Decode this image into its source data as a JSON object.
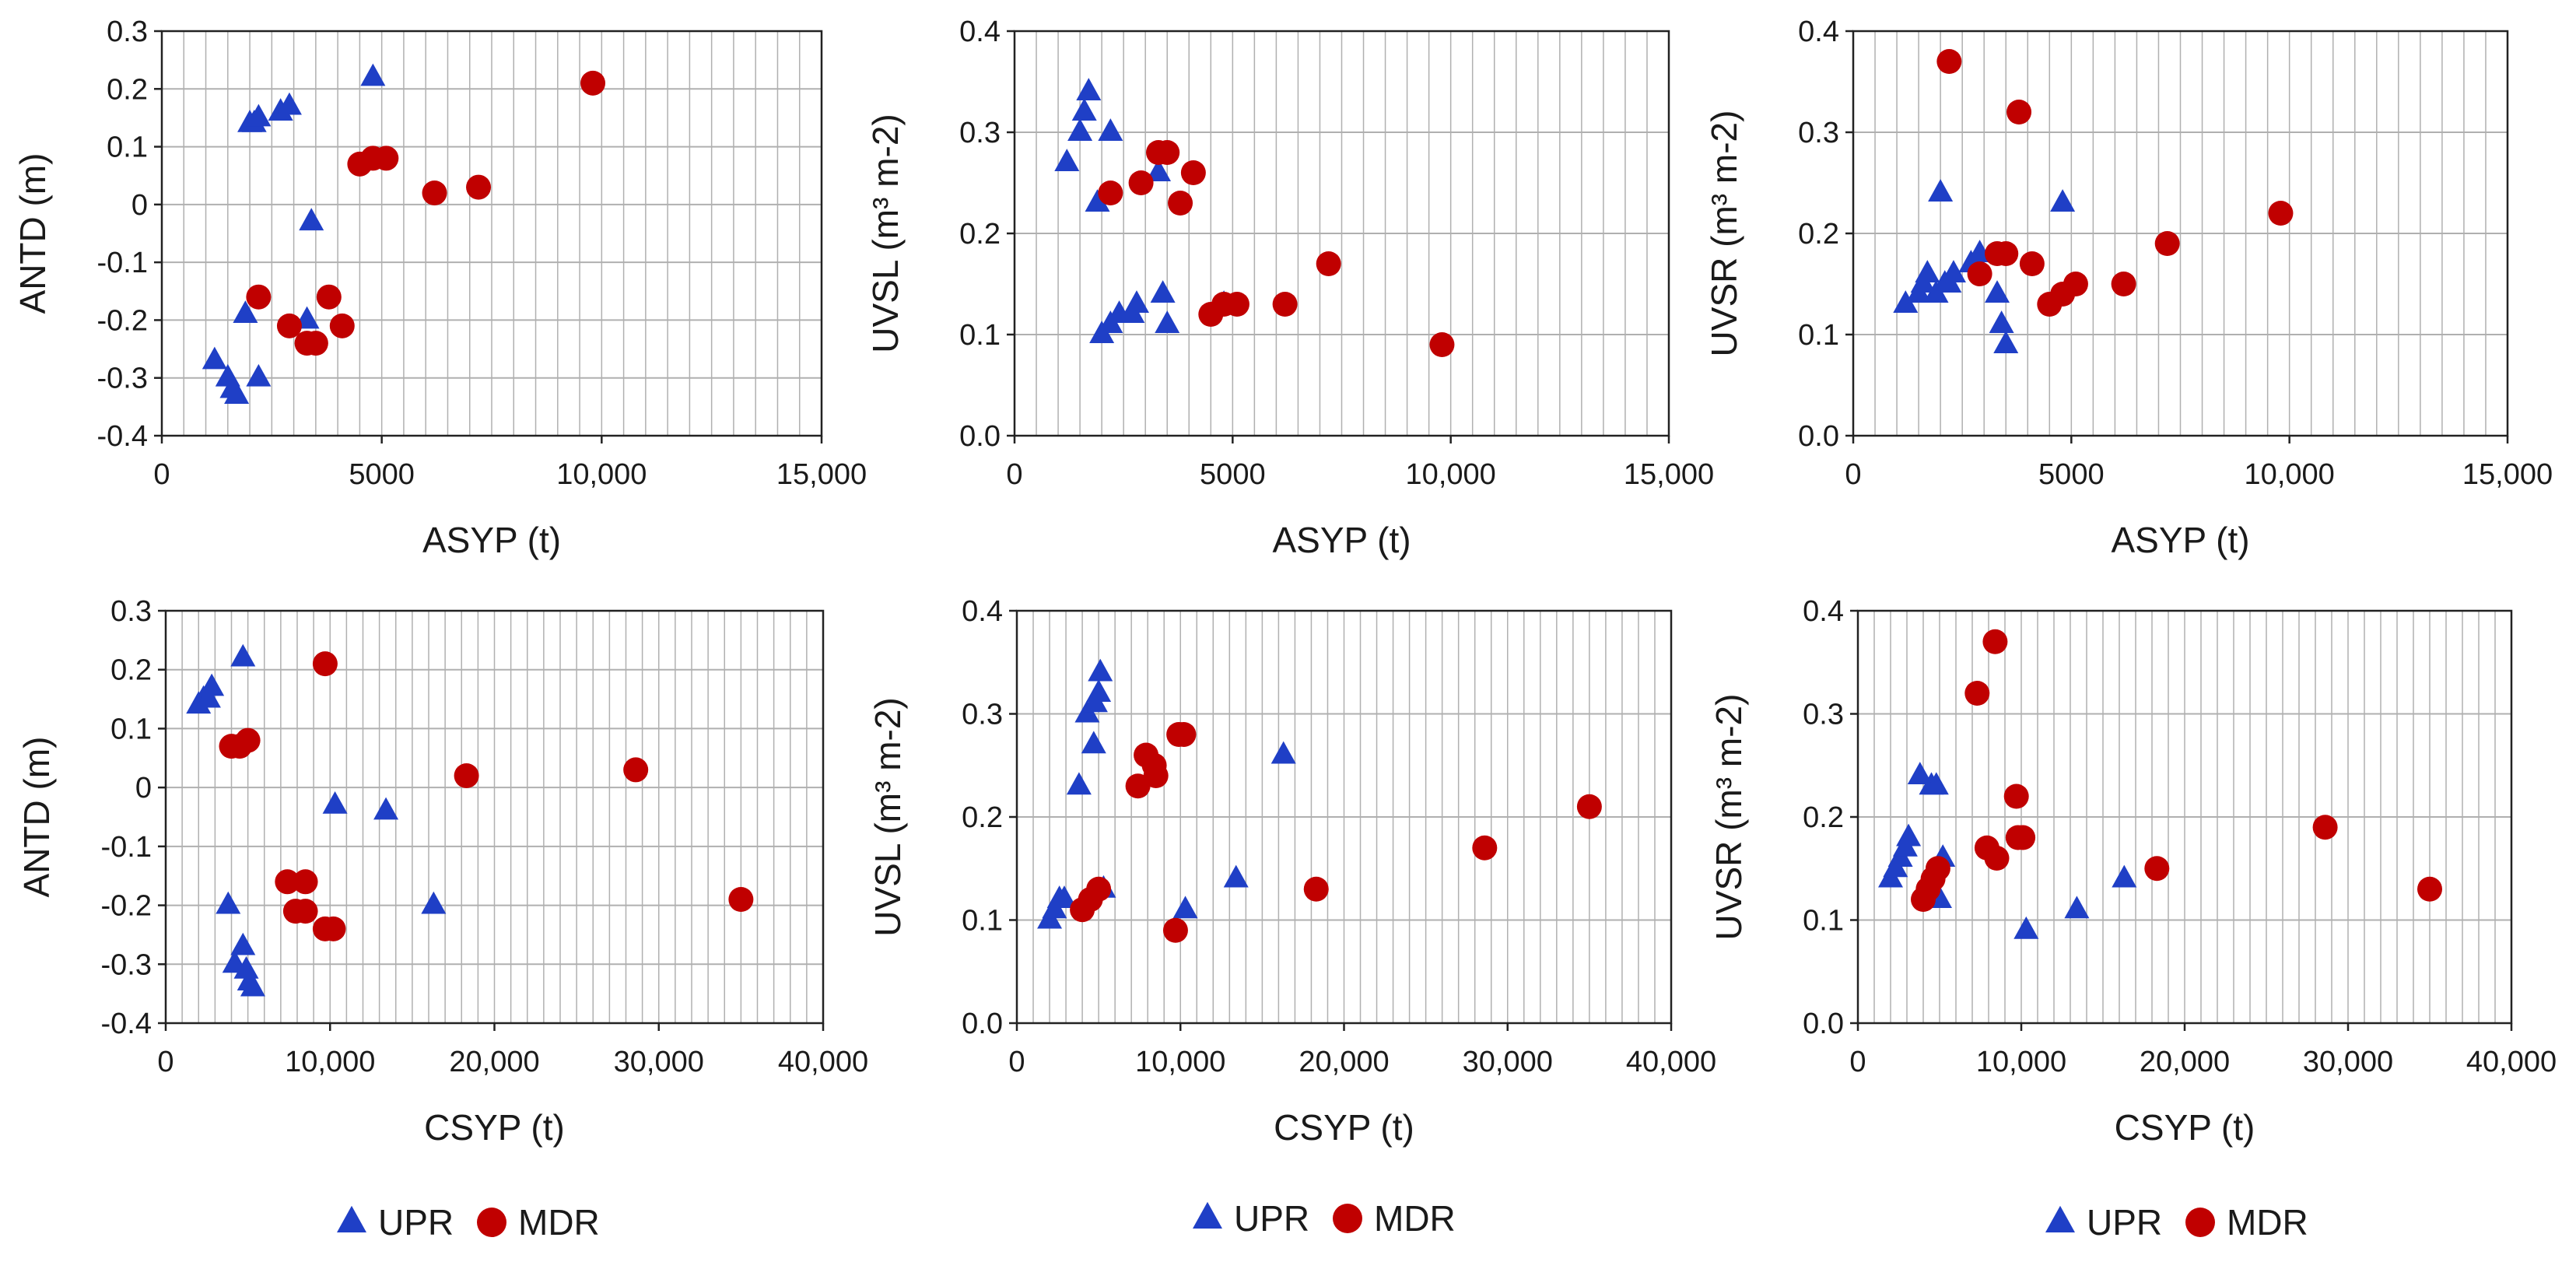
{
  "colors": {
    "UPR": "#1f3fc6",
    "MDR": "#c00000",
    "grid": "#b0b0b0",
    "axis": "#222222"
  },
  "legend": [
    {
      "name": "UPR",
      "marker": "triangle"
    },
    {
      "name": "MDR",
      "marker": "circle"
    }
  ],
  "chart_data": [
    {
      "type": "scatter",
      "xlabel": "ASYP (t)",
      "ylabel": "ANTD (m)",
      "xlim": [
        0,
        15000
      ],
      "xticks": [
        0,
        5000,
        10000,
        15000
      ],
      "xtick_labels": [
        "0",
        "5000",
        "10,000",
        "15,000"
      ],
      "ylim": [
        -0.4,
        0.3
      ],
      "yticks": [
        -0.4,
        -0.3,
        -0.2,
        -0.1,
        0,
        0.1,
        0.2,
        0.3
      ],
      "ytick_labels": [
        "-0.4",
        "-0.3",
        "-0.2",
        "-0.1",
        "0",
        "0.1",
        "0.2",
        "0.3"
      ],
      "grid": true,
      "series": [
        {
          "name": "UPR",
          "points": [
            [
              1200,
              -0.27
            ],
            [
              1500,
              -0.3
            ],
            [
              1600,
              -0.32
            ],
            [
              1700,
              -0.33
            ],
            [
              1900,
              -0.19
            ],
            [
              2000,
              0.14
            ],
            [
              2100,
              0.14
            ],
            [
              2200,
              0.15
            ],
            [
              2200,
              -0.3
            ],
            [
              2700,
              0.16
            ],
            [
              2900,
              0.17
            ],
            [
              3300,
              -0.2
            ],
            [
              3400,
              -0.03
            ],
            [
              4800,
              0.22
            ]
          ]
        },
        {
          "name": "MDR",
          "points": [
            [
              2200,
              -0.16
            ],
            [
              2900,
              -0.21
            ],
            [
              3300,
              -0.24
            ],
            [
              3500,
              -0.24
            ],
            [
              3800,
              -0.16
            ],
            [
              4100,
              -0.21
            ],
            [
              4500,
              0.07
            ],
            [
              4800,
              0.08
            ],
            [
              5100,
              0.08
            ],
            [
              6200,
              0.02
            ],
            [
              7200,
              0.03
            ],
            [
              9800,
              0.21
            ]
          ]
        }
      ]
    },
    {
      "type": "scatter",
      "xlabel": "ASYP (t)",
      "ylabel": "UVSL (m³ m-2)",
      "xlim": [
        0,
        15000
      ],
      "xticks": [
        0,
        5000,
        10000,
        15000
      ],
      "xtick_labels": [
        "0",
        "5000",
        "10,000",
        "15,000"
      ],
      "ylim": [
        0,
        0.4
      ],
      "yticks": [
        0,
        0.1,
        0.2,
        0.3,
        0.4
      ],
      "ytick_labels": [
        "0.0",
        "0.1",
        "0.2",
        "0.3",
        "0.4"
      ],
      "grid": true,
      "series": [
        {
          "name": "UPR",
          "points": [
            [
              1200,
              0.27
            ],
            [
              1500,
              0.3
            ],
            [
              1600,
              0.32
            ],
            [
              1700,
              0.34
            ],
            [
              1900,
              0.23
            ],
            [
              2000,
              0.1
            ],
            [
              2200,
              0.3
            ],
            [
              2200,
              0.11
            ],
            [
              2400,
              0.12
            ],
            [
              2700,
              0.12
            ],
            [
              2800,
              0.13
            ],
            [
              3300,
              0.26
            ],
            [
              3400,
              0.14
            ],
            [
              3500,
              0.11
            ],
            [
              4800,
              0.13
            ]
          ]
        },
        {
          "name": "MDR",
          "points": [
            [
              2200,
              0.24
            ],
            [
              2900,
              0.25
            ],
            [
              3300,
              0.28
            ],
            [
              3500,
              0.28
            ],
            [
              3800,
              0.23
            ],
            [
              4100,
              0.26
            ],
            [
              4500,
              0.12
            ],
            [
              4800,
              0.13
            ],
            [
              5100,
              0.13
            ],
            [
              6200,
              0.13
            ],
            [
              7200,
              0.17
            ],
            [
              9800,
              0.09
            ]
          ]
        }
      ]
    },
    {
      "type": "scatter",
      "xlabel": "ASYP (t)",
      "ylabel": "UVSR (m³ m-2)",
      "xlim": [
        0,
        15000
      ],
      "xticks": [
        0,
        5000,
        10000,
        15000
      ],
      "xtick_labels": [
        "0",
        "5000",
        "10,000",
        "15,000"
      ],
      "ylim": [
        0,
        0.4
      ],
      "yticks": [
        0,
        0.1,
        0.2,
        0.3,
        0.4
      ],
      "ytick_labels": [
        "0.0",
        "0.1",
        "0.2",
        "0.3",
        "0.4"
      ],
      "grid": true,
      "series": [
        {
          "name": "UPR",
          "points": [
            [
              1200,
              0.13
            ],
            [
              1500,
              0.14
            ],
            [
              1600,
              0.15
            ],
            [
              1700,
              0.16
            ],
            [
              1900,
              0.14
            ],
            [
              2000,
              0.24
            ],
            [
              2100,
              0.15
            ],
            [
              2200,
              0.15
            ],
            [
              2300,
              0.16
            ],
            [
              2700,
              0.17
            ],
            [
              2900,
              0.18
            ],
            [
              3300,
              0.14
            ],
            [
              3400,
              0.11
            ],
            [
              3500,
              0.09
            ],
            [
              4800,
              0.23
            ]
          ]
        },
        {
          "name": "MDR",
          "points": [
            [
              2200,
              0.37
            ],
            [
              2900,
              0.16
            ],
            [
              3300,
              0.18
            ],
            [
              3500,
              0.18
            ],
            [
              3800,
              0.32
            ],
            [
              4100,
              0.17
            ],
            [
              4500,
              0.13
            ],
            [
              4800,
              0.14
            ],
            [
              5100,
              0.15
            ],
            [
              6200,
              0.15
            ],
            [
              7200,
              0.19
            ],
            [
              9800,
              0.22
            ]
          ]
        }
      ]
    },
    {
      "type": "scatter",
      "xlabel": "CSYP (t)",
      "ylabel": "ANTD (m)",
      "xlim": [
        0,
        40000
      ],
      "xticks": [
        0,
        10000,
        20000,
        30000,
        40000
      ],
      "xtick_labels": [
        "0",
        "10,000",
        "20,000",
        "30,000",
        "40,000"
      ],
      "ylim": [
        -0.4,
        0.3
      ],
      "yticks": [
        -0.4,
        -0.3,
        -0.2,
        -0.1,
        0,
        0.1,
        0.2,
        0.3
      ],
      "ytick_labels": [
        "-0.4",
        "-0.3",
        "-0.2",
        "-0.1",
        "0",
        "0.1",
        "0.2",
        "0.3"
      ],
      "grid": true,
      "series": [
        {
          "name": "UPR",
          "points": [
            [
              2000,
              0.14
            ],
            [
              2300,
              0.15
            ],
            [
              2600,
              0.15
            ],
            [
              2800,
              0.17
            ],
            [
              3800,
              -0.2
            ],
            [
              4200,
              -0.3
            ],
            [
              4700,
              -0.27
            ],
            [
              4700,
              0.22
            ],
            [
              4900,
              -0.31
            ],
            [
              5100,
              -0.33
            ],
            [
              5300,
              -0.34
            ],
            [
              10300,
              -0.03
            ],
            [
              13400,
              -0.04
            ],
            [
              16300,
              -0.2
            ]
          ]
        },
        {
          "name": "MDR",
          "points": [
            [
              4000,
              0.07
            ],
            [
              4500,
              0.07
            ],
            [
              5000,
              0.08
            ],
            [
              7400,
              -0.16
            ],
            [
              7900,
              -0.21
            ],
            [
              8500,
              -0.16
            ],
            [
              8500,
              -0.21
            ],
            [
              9700,
              0.21
            ],
            [
              9700,
              -0.24
            ],
            [
              10200,
              -0.24
            ],
            [
              18300,
              0.02
            ],
            [
              28600,
              0.03
            ],
            [
              35000,
              -0.19
            ]
          ]
        }
      ]
    },
    {
      "type": "scatter",
      "xlabel": "CSYP (t)",
      "ylabel": "UVSL (m³ m-2)",
      "xlim": [
        0,
        40000
      ],
      "xticks": [
        0,
        10000,
        20000,
        30000,
        40000
      ],
      "xtick_labels": [
        "0",
        "10,000",
        "20,000",
        "30,000",
        "40,000"
      ],
      "ylim": [
        0,
        0.4
      ],
      "yticks": [
        0,
        0.1,
        0.2,
        0.3,
        0.4
      ],
      "ytick_labels": [
        "0.0",
        "0.1",
        "0.2",
        "0.3",
        "0.4"
      ],
      "grid": true,
      "series": [
        {
          "name": "UPR",
          "points": [
            [
              2000,
              0.1
            ],
            [
              2300,
              0.11
            ],
            [
              2600,
              0.12
            ],
            [
              2900,
              0.12
            ],
            [
              3800,
              0.23
            ],
            [
              4300,
              0.3
            ],
            [
              4700,
              0.27
            ],
            [
              4800,
              0.31
            ],
            [
              5000,
              0.32
            ],
            [
              5100,
              0.34
            ],
            [
              5300,
              0.13
            ],
            [
              10300,
              0.11
            ],
            [
              13400,
              0.14
            ],
            [
              16300,
              0.26
            ]
          ]
        },
        {
          "name": "MDR",
          "points": [
            [
              4000,
              0.11
            ],
            [
              4500,
              0.12
            ],
            [
              5000,
              0.13
            ],
            [
              7400,
              0.23
            ],
            [
              7900,
              0.26
            ],
            [
              8400,
              0.25
            ],
            [
              8500,
              0.24
            ],
            [
              9700,
              0.09
            ],
            [
              9900,
              0.28
            ],
            [
              10200,
              0.28
            ],
            [
              18300,
              0.13
            ],
            [
              28600,
              0.17
            ],
            [
              35000,
              0.21
            ]
          ]
        }
      ]
    },
    {
      "type": "scatter",
      "xlabel": "CSYP (t)",
      "ylabel": "UVSR (m³ m-2)",
      "xlim": [
        0,
        40000
      ],
      "xticks": [
        0,
        10000,
        20000,
        30000,
        40000
      ],
      "xtick_labels": [
        "0",
        "10,000",
        "20,000",
        "30,000",
        "40,000"
      ],
      "ylim": [
        0,
        0.4
      ],
      "yticks": [
        0,
        0.1,
        0.2,
        0.3,
        0.4
      ],
      "ytick_labels": [
        "0.0",
        "0.1",
        "0.2",
        "0.3",
        "0.4"
      ],
      "grid": true,
      "series": [
        {
          "name": "UPR",
          "points": [
            [
              2000,
              0.14
            ],
            [
              2300,
              0.15
            ],
            [
              2600,
              0.16
            ],
            [
              2900,
              0.17
            ],
            [
              3100,
              0.18
            ],
            [
              3800,
              0.24
            ],
            [
              4500,
              0.23
            ],
            [
              4800,
              0.23
            ],
            [
              5000,
              0.12
            ],
            [
              5200,
              0.16
            ],
            [
              10300,
              0.09
            ],
            [
              13400,
              0.11
            ],
            [
              16300,
              0.14
            ]
          ]
        },
        {
          "name": "MDR",
          "points": [
            [
              4000,
              0.12
            ],
            [
              4300,
              0.13
            ],
            [
              4600,
              0.14
            ],
            [
              4900,
              0.15
            ],
            [
              7300,
              0.32
            ],
            [
              7900,
              0.17
            ],
            [
              8400,
              0.37
            ],
            [
              8500,
              0.16
            ],
            [
              9700,
              0.22
            ],
            [
              9800,
              0.18
            ],
            [
              10100,
              0.18
            ],
            [
              18300,
              0.15
            ],
            [
              28600,
              0.19
            ],
            [
              35000,
              0.13
            ]
          ]
        }
      ]
    }
  ]
}
